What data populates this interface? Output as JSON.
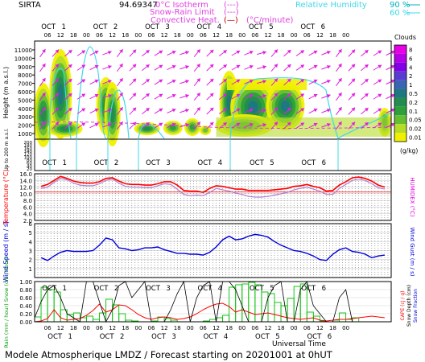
{
  "header": {
    "station": "SIRTA",
    "station_code": "94.69347",
    "legend_isotherm": "0°C Isotherm",
    "legend_isotherm_sample": "(---)",
    "legend_snowrain": "Snow-Rain Limit",
    "legend_snowrain_sample": "(---)",
    "legend_convective": "Convective Heat.",
    "legend_convective_sample": "(—)",
    "legend_convective_unit": "(°C/minute)",
    "legend_rh": "Relative Humidity",
    "legend_rh_90": "90 %",
    "legend_rh_60": "60 %"
  },
  "colors": {
    "rh90": "#00b0c0",
    "rh60": "#40d8e8",
    "isotherm": "#e040e0",
    "temperature": "#ff0000",
    "humidex": "#b080d0",
    "wind": "#0000dd",
    "rain_bars": "#00c000",
    "snow": "#000000",
    "cape": "#ff0000",
    "label_red": "#ff0000",
    "label_blue": "#0000dd",
    "label_magenta": "#e000e0"
  },
  "time_axis": {
    "days": [
      "OCT 1",
      "OCT 2",
      "OCT 3",
      "OCT 4",
      "OCT 5",
      "OCT 6"
    ],
    "hours": [
      "06",
      "12",
      "18",
      "00"
    ],
    "xlabel": "Universal Time"
  },
  "panel1": {
    "ylabel": "Height (m a.s.l.)",
    "ylabel_lower": "Up to 200 m a.s.l.",
    "yticks": [
      "11000",
      "10000",
      "9000",
      "8000",
      "7000",
      "6000",
      "5000",
      "4000",
      "3000",
      "2000",
      "1000"
    ],
    "yticks_lower": [
      "200",
      "180",
      "160",
      "140",
      "120",
      "100",
      "80",
      "60",
      "40",
      "20"
    ],
    "cbar_title": "Clouds",
    "cbar_labels": [
      "8",
      "6",
      "4",
      "2",
      "1",
      "0.5",
      "0.2",
      "0.1",
      "0.05",
      "0.02",
      "0.01"
    ],
    "cbar_colors": [
      "#e600e6",
      "#b400e6",
      "#8200e6",
      "#5a3cd2",
      "#3c64b4",
      "#1e7882",
      "#238c50",
      "#2da03c",
      "#64be32",
      "#b4dc28",
      "#f0f000"
    ],
    "cbar_unit": "(g/kg)"
  },
  "panel2": {
    "ylabel": "Temperature (°C)",
    "ylabel_right": "HUMIDEX (°C)",
    "yticks": [
      "16.0",
      "14.0",
      "12.0",
      "10.0",
      "8.0",
      "6.0",
      "4.0",
      "2.0"
    ]
  },
  "panel3": {
    "ylabel": "Wind Speed (m / s)",
    "ylabel_right": "Wind Gust (m / s)",
    "yticks": [
      "6",
      "5",
      "4",
      "3",
      "2",
      "1"
    ]
  },
  "panel4": {
    "ylabel": "Rain (mm / hour) Snow (cm / hour)",
    "ylabel_right_cape": "CAPE (cJ / g)",
    "ylabel_right_snow": "Snow Depth (cm)",
    "ylabel_right_snowfrac": "Snow Fraction",
    "yticks": [
      "1.00",
      "0.80",
      "0.60",
      "0.40",
      "0.20",
      "0.00"
    ]
  },
  "footer": {
    "text": "Modele Atmospherique LMDZ / Forecast starting on 20201001 at 0hUT"
  },
  "chart_data": [
    {
      "type": "line",
      "panel": "temperature",
      "x_hours_from_start": [
        3,
        6,
        9,
        12,
        15,
        18,
        21,
        24,
        27,
        30,
        33,
        36,
        39,
        42,
        45,
        48,
        51,
        54,
        57,
        60,
        63,
        66,
        69,
        72,
        75,
        78,
        81,
        84,
        87,
        90,
        93,
        96,
        99,
        102,
        105,
        108,
        111,
        114,
        117,
        120,
        123,
        126,
        129,
        132,
        135,
        138,
        141,
        144,
        147,
        150,
        153,
        156,
        159,
        162
      ],
      "series": [
        {
          "values": [
            12.2,
            12.8,
            14.0,
            15.2,
            14.6,
            13.8,
            13.4,
            13.2,
            13.2,
            13.6,
            14.6,
            14.8,
            13.8,
            13.0,
            12.8,
            12.8,
            12.6,
            12.6,
            13.0,
            13.6,
            13.6,
            12.6,
            11.0,
            10.8,
            10.8,
            10.4,
            11.6,
            12.4,
            12.2,
            11.8,
            11.4,
            11.4,
            11.0,
            11.0,
            11.0,
            11.0,
            11.2,
            11.4,
            11.6,
            12.2,
            12.4,
            12.8,
            12.2,
            11.8,
            10.8,
            11.0,
            12.6,
            13.6,
            14.8,
            15.0,
            14.6,
            13.8,
            12.6,
            12.0
          ]
        },
        {
          "values": [
            11.6,
            12.0,
            13.4,
            14.6,
            14.2,
            13.2,
            12.6,
            12.4,
            12.4,
            13.0,
            14.0,
            14.4,
            13.2,
            12.2,
            12.0,
            12.0,
            11.8,
            11.8,
            12.4,
            13.0,
            12.8,
            11.4,
            9.8,
            9.4,
            9.6,
            9.4,
            10.4,
            11.6,
            11.2,
            10.8,
            10.2,
            9.8,
            9.2,
            9.0,
            9.0,
            9.2,
            9.6,
            10.0,
            10.4,
            11.2,
            11.6,
            12.0,
            11.4,
            10.8,
            9.8,
            9.8,
            11.6,
            12.8,
            14.0,
            14.4,
            14.0,
            13.0,
            11.8,
            11.4
          ]
        }
      ],
      "ylim": [
        2,
        16
      ]
    },
    {
      "type": "line",
      "panel": "wind",
      "x_hours_from_start": [
        3,
        6,
        9,
        12,
        15,
        18,
        21,
        24,
        27,
        30,
        33,
        36,
        39,
        42,
        45,
        48,
        51,
        54,
        57,
        60,
        63,
        66,
        69,
        72,
        75,
        78,
        81,
        84,
        87,
        90,
        93,
        96,
        99,
        102,
        105,
        108,
        111,
        114,
        117,
        120,
        123,
        126,
        129,
        132,
        135,
        138,
        141,
        144,
        147,
        150,
        153,
        156,
        159,
        162
      ],
      "series": [
        {
          "values": [
            2.2,
            1.9,
            2.4,
            2.8,
            3.0,
            2.9,
            2.9,
            2.9,
            3.0,
            3.6,
            4.4,
            4.2,
            3.3,
            3.2,
            3.0,
            3.1,
            3.3,
            3.3,
            3.4,
            3.1,
            2.9,
            2.7,
            2.7,
            2.6,
            2.6,
            2.5,
            2.8,
            3.4,
            4.2,
            4.6,
            4.2,
            4.3,
            4.6,
            4.8,
            4.7,
            4.5,
            4.0,
            3.6,
            3.3,
            3.0,
            2.9,
            2.7,
            2.4,
            2.0,
            1.9,
            2.6,
            3.1,
            3.3,
            2.9,
            2.8,
            2.6,
            2.2,
            2.4,
            2.5
          ]
        }
      ],
      "ylim": [
        0,
        6
      ]
    },
    {
      "type": "bar",
      "panel": "precipitation",
      "x_hours_from_start": [
        0,
        3,
        6,
        9,
        12,
        15,
        18,
        21,
        24,
        27,
        30,
        33,
        36,
        39,
        42,
        45,
        48,
        51,
        54,
        57,
        60,
        63,
        66,
        69,
        72,
        75,
        78,
        81,
        84,
        87,
        90,
        93,
        96,
        99,
        102,
        105,
        108,
        111,
        114,
        117,
        120,
        123,
        126,
        129,
        132,
        135,
        138,
        141,
        144,
        147,
        150,
        153,
        156,
        159,
        162
      ],
      "series": [
        {
          "values": [
            0.12,
            0.86,
            0.8,
            0.74,
            0.3,
            0.18,
            0.22,
            0.1,
            0.14,
            0.06,
            0.22,
            0.56,
            0.42,
            0.2,
            0.04,
            0.02,
            0.0,
            0.0,
            0.02,
            0.12,
            0.08,
            0.04,
            0.0,
            0.0,
            0.0,
            0.0,
            0.02,
            0.06,
            0.1,
            0.16,
            0.86,
            0.92,
            0.94,
            0.98,
            0.92,
            0.74,
            0.7,
            0.48,
            0.4,
            0.58,
            0.88,
            0.94,
            0.24,
            0.14,
            0.02,
            0.0,
            0.04,
            0.22,
            0.06,
            0.1,
            0.0,
            0.0,
            0.0,
            0.0,
            0.0
          ]
        },
        {
          "values": [
            0.0,
            0.02,
            0.08,
            0.3,
            0.1,
            0.04,
            0.06,
            0.08,
            0.16,
            0.28,
            0.44,
            0.24,
            0.3,
            0.42,
            0.4,
            0.3,
            0.18,
            0.1,
            0.06,
            0.1,
            0.12,
            0.1,
            0.06,
            0.08,
            0.12,
            0.2,
            0.3,
            0.38,
            0.44,
            0.46,
            0.38,
            0.24,
            0.3,
            0.24,
            0.18,
            0.2,
            0.22,
            0.18,
            0.14,
            0.1,
            0.08,
            0.06,
            0.08,
            0.1,
            0.04,
            0.02,
            0.04,
            0.06,
            0.06,
            0.08,
            0.1,
            0.12,
            0.14,
            0.12,
            0.1
          ]
        },
        {
          "values": [
            0.1,
            0.5,
            0.8,
            0.9,
            0.6,
            0.2,
            0.1,
            0.0,
            1.0,
            1.0,
            0.5,
            0.0,
            0.3,
            0.9,
            1.0,
            0.6,
            0.8,
            1.0,
            0.0,
            0.0,
            0.0,
            0.3,
            0.7,
            1.0,
            0.0,
            0.6,
            0.9,
            1.0,
            0.0,
            1.0,
            1.0,
            0.8,
            0.4,
            0.0,
            0.0,
            0.0,
            0.6,
            0.9,
            1.0,
            0.0,
            0.0,
            0.8,
            1.0,
            0.4,
            0.2,
            0.0,
            0.0,
            0.6,
            0.8,
            0.0,
            0.0,
            0.0,
            0.0,
            0.0,
            0.0
          ]
        }
      ],
      "ylim": [
        0,
        1
      ]
    }
  ]
}
